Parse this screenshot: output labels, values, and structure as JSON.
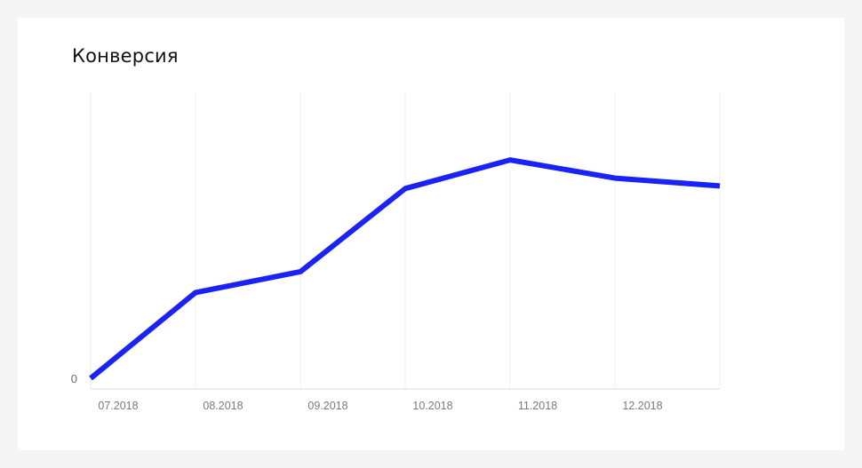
{
  "chart_data": {
    "type": "line",
    "title": "Конверсия",
    "xlabel": "",
    "ylabel": "",
    "categories": [
      "07.2018",
      "08.2018",
      "09.2018",
      "10.2018",
      "11.2018",
      "12.2018",
      ""
    ],
    "y_tick_labels": [
      "0"
    ],
    "series": [
      {
        "values": [
          0,
          33,
          41,
          73,
          84,
          77,
          74
        ],
        "color": "#1a22f5"
      }
    ],
    "ylim": [
      0,
      110
    ],
    "grid": "vertical",
    "legend": "none"
  }
}
